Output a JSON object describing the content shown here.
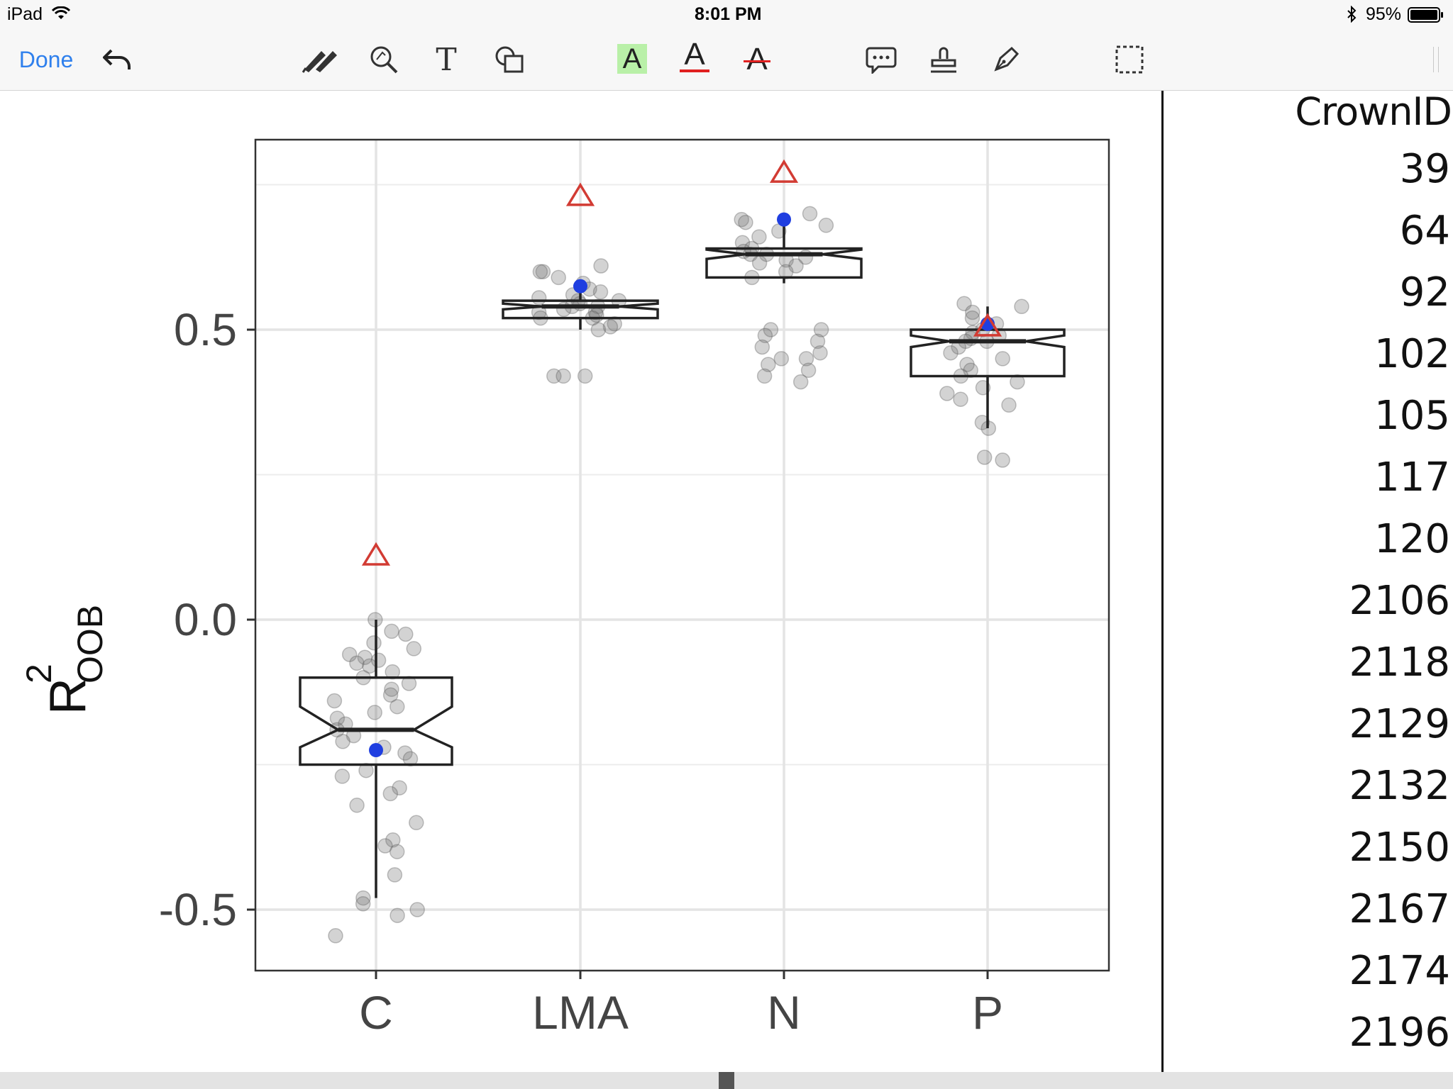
{
  "status_bar": {
    "device": "iPad",
    "time": "8:01 PM",
    "battery": "95%"
  },
  "toolbar": {
    "done_label": "Done",
    "undo_icon": "undo-arrow-icon",
    "tools": [
      "pen-icon",
      "magnifier-icon",
      "text-icon",
      "shapes-icon",
      "highlight-icon",
      "underline-icon",
      "strikethrough-icon",
      "comment-icon",
      "stamp-icon",
      "signature-icon",
      "selection-icon"
    ],
    "text_tool_glyph": "T",
    "highlight_glyph": "A",
    "underline_glyph": "A",
    "strike_glyph": "A",
    "accent_color": "#2f80ed",
    "highlight_color": "#b9f0a8",
    "markup_red": "#e02020"
  },
  "chart_data": {
    "type": "boxplot",
    "categories": [
      "C",
      "LMA",
      "N",
      "P"
    ],
    "ylabel": "R",
    "ylabel_superscript": "2",
    "ylabel_subscript": "OOB",
    "yticks": [
      0.5,
      0.0,
      -0.5
    ],
    "ytick_labels": [
      "0.5",
      "0.0",
      "-0.5"
    ],
    "ylim": [
      -0.61,
      0.82
    ],
    "grid": true,
    "notched": true,
    "boxes": [
      {
        "category": "C",
        "whisker_low": -0.48,
        "q1": -0.25,
        "median": -0.19,
        "q3": -0.1,
        "whisker_high": 0.0,
        "notch_low": -0.22,
        "notch_high": -0.15
      },
      {
        "category": "LMA",
        "whisker_low": 0.5,
        "q1": 0.52,
        "median": 0.54,
        "q3": 0.55,
        "whisker_high": 0.58,
        "notch_low": 0.535,
        "notch_high": 0.545
      },
      {
        "category": "N",
        "whisker_low": 0.58,
        "q1": 0.59,
        "median": 0.63,
        "q3": 0.64,
        "whisker_high": 0.69,
        "notch_low": 0.622,
        "notch_high": 0.638
      },
      {
        "category": "P",
        "whisker_low": 0.33,
        "q1": 0.42,
        "median": 0.48,
        "q3": 0.5,
        "whisker_high": 0.54,
        "notch_low": 0.47,
        "notch_high": 0.49
      }
    ],
    "triangle_markers": [
      {
        "category": "C",
        "value": 0.11
      },
      {
        "category": "LMA",
        "value": 0.73
      },
      {
        "category": "N",
        "value": 0.77
      },
      {
        "category": "P",
        "value": 0.505
      }
    ],
    "blue_points": [
      {
        "category": "C",
        "value": -0.225
      },
      {
        "category": "LMA",
        "value": 0.575
      },
      {
        "category": "N",
        "value": 0.69
      },
      {
        "category": "P",
        "value": 0.51
      }
    ],
    "jitter_points": [
      {
        "category": "C",
        "values": [
          0.0,
          -0.02,
          -0.025,
          -0.04,
          -0.05,
          -0.06,
          -0.065,
          -0.07,
          -0.075,
          -0.08,
          -0.09,
          -0.1,
          -0.11,
          -0.12,
          -0.13,
          -0.14,
          -0.15,
          -0.16,
          -0.17,
          -0.18,
          -0.19,
          -0.2,
          -0.21,
          -0.22,
          -0.23,
          -0.24,
          -0.26,
          -0.27,
          -0.29,
          -0.3,
          -0.32,
          -0.35,
          -0.38,
          -0.39,
          -0.4,
          -0.44,
          -0.48,
          -0.49,
          -0.5,
          -0.51,
          -0.545
        ]
      },
      {
        "category": "LMA",
        "values": [
          0.61,
          0.6,
          0.6,
          0.59,
          0.58,
          0.57,
          0.565,
          0.56,
          0.555,
          0.55,
          0.55,
          0.545,
          0.54,
          0.54,
          0.535,
          0.53,
          0.53,
          0.525,
          0.52,
          0.52,
          0.51,
          0.505,
          0.5,
          0.42,
          0.42,
          0.42
        ]
      },
      {
        "category": "N",
        "values": [
          0.7,
          0.69,
          0.685,
          0.68,
          0.67,
          0.66,
          0.65,
          0.64,
          0.635,
          0.63,
          0.63,
          0.625,
          0.62,
          0.615,
          0.61,
          0.6,
          0.59,
          0.5,
          0.5,
          0.49,
          0.48,
          0.47,
          0.46,
          0.45,
          0.45,
          0.44,
          0.43,
          0.42,
          0.41
        ]
      },
      {
        "category": "P",
        "values": [
          0.545,
          0.54,
          0.53,
          0.52,
          0.51,
          0.5,
          0.495,
          0.49,
          0.485,
          0.48,
          0.48,
          0.47,
          0.46,
          0.45,
          0.44,
          0.43,
          0.42,
          0.41,
          0.4,
          0.39,
          0.38,
          0.37,
          0.34,
          0.33,
          0.28,
          0.275
        ]
      }
    ]
  },
  "data_column": {
    "header": "CrownID",
    "values": [
      "39",
      "64",
      "92",
      "102",
      "105",
      "117",
      "120",
      "2106",
      "2118",
      "2129",
      "2132",
      "2150",
      "2167",
      "2174",
      "2196"
    ]
  }
}
